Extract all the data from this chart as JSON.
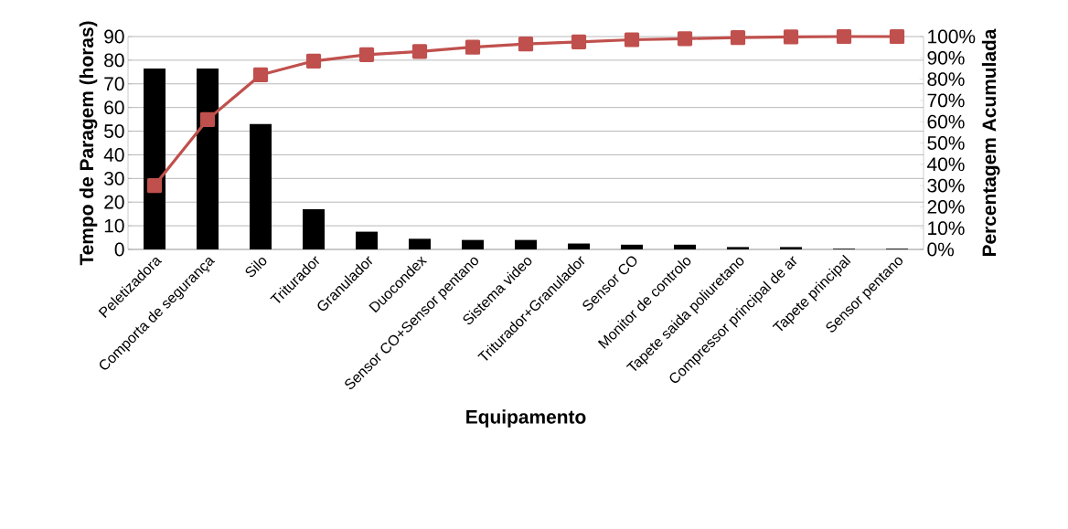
{
  "chart_data": {
    "type": "bar",
    "xlabel": "Equipamento",
    "ylabel": "Tempo de Paragem (horas)",
    "y2label": "Percentagem Acumulada",
    "categories": [
      "Peletizadora",
      "Comporta de segurança",
      "Silo",
      "Triturador",
      "Granulador",
      "Duocondex",
      "Sensor CO+Sensor pentano",
      "Sistema video",
      "Triturador+Granulador",
      "Sensor CO",
      "Monitor de controlo",
      "Tapete saida poliuretano",
      "Compressor principal de ar",
      "Tapete principal",
      "Sensor pentano"
    ],
    "series": [
      {
        "color": "#000000",
        "values": [
          76.5,
          76.5,
          53,
          17,
          7.5,
          4.5,
          4,
          4,
          2.5,
          2,
          2,
          1,
          1,
          0.3,
          0.3
        ]
      },
      {
        "type": "line",
        "axis": "y2",
        "color": "#c0504d",
        "marker": "square",
        "values": [
          30,
          61,
          82,
          88.5,
          91.5,
          93,
          95,
          96.5,
          97.5,
          98.5,
          99,
          99.5,
          99.8,
          100,
          100
        ]
      }
    ],
    "ylim": [
      0,
      90
    ],
    "yticks": [
      0,
      10,
      20,
      30,
      40,
      50,
      60,
      70,
      80,
      90
    ],
    "y2lim": [
      0,
      100
    ],
    "y2ticks": [
      {
        "value": 0,
        "label": "0%"
      },
      {
        "value": 10,
        "label": "10%"
      },
      {
        "value": 20,
        "label": "20%"
      },
      {
        "value": 30,
        "label": "30%"
      },
      {
        "value": 40,
        "label": "40%"
      },
      {
        "value": 50,
        "label": "50%"
      },
      {
        "value": 60,
        "label": "60%"
      },
      {
        "value": 70,
        "label": "70%"
      },
      {
        "value": 80,
        "label": "80%"
      },
      {
        "value": 90,
        "label": "90%"
      },
      {
        "value": 100,
        "label": "100%"
      }
    ],
    "grid": "y"
  }
}
